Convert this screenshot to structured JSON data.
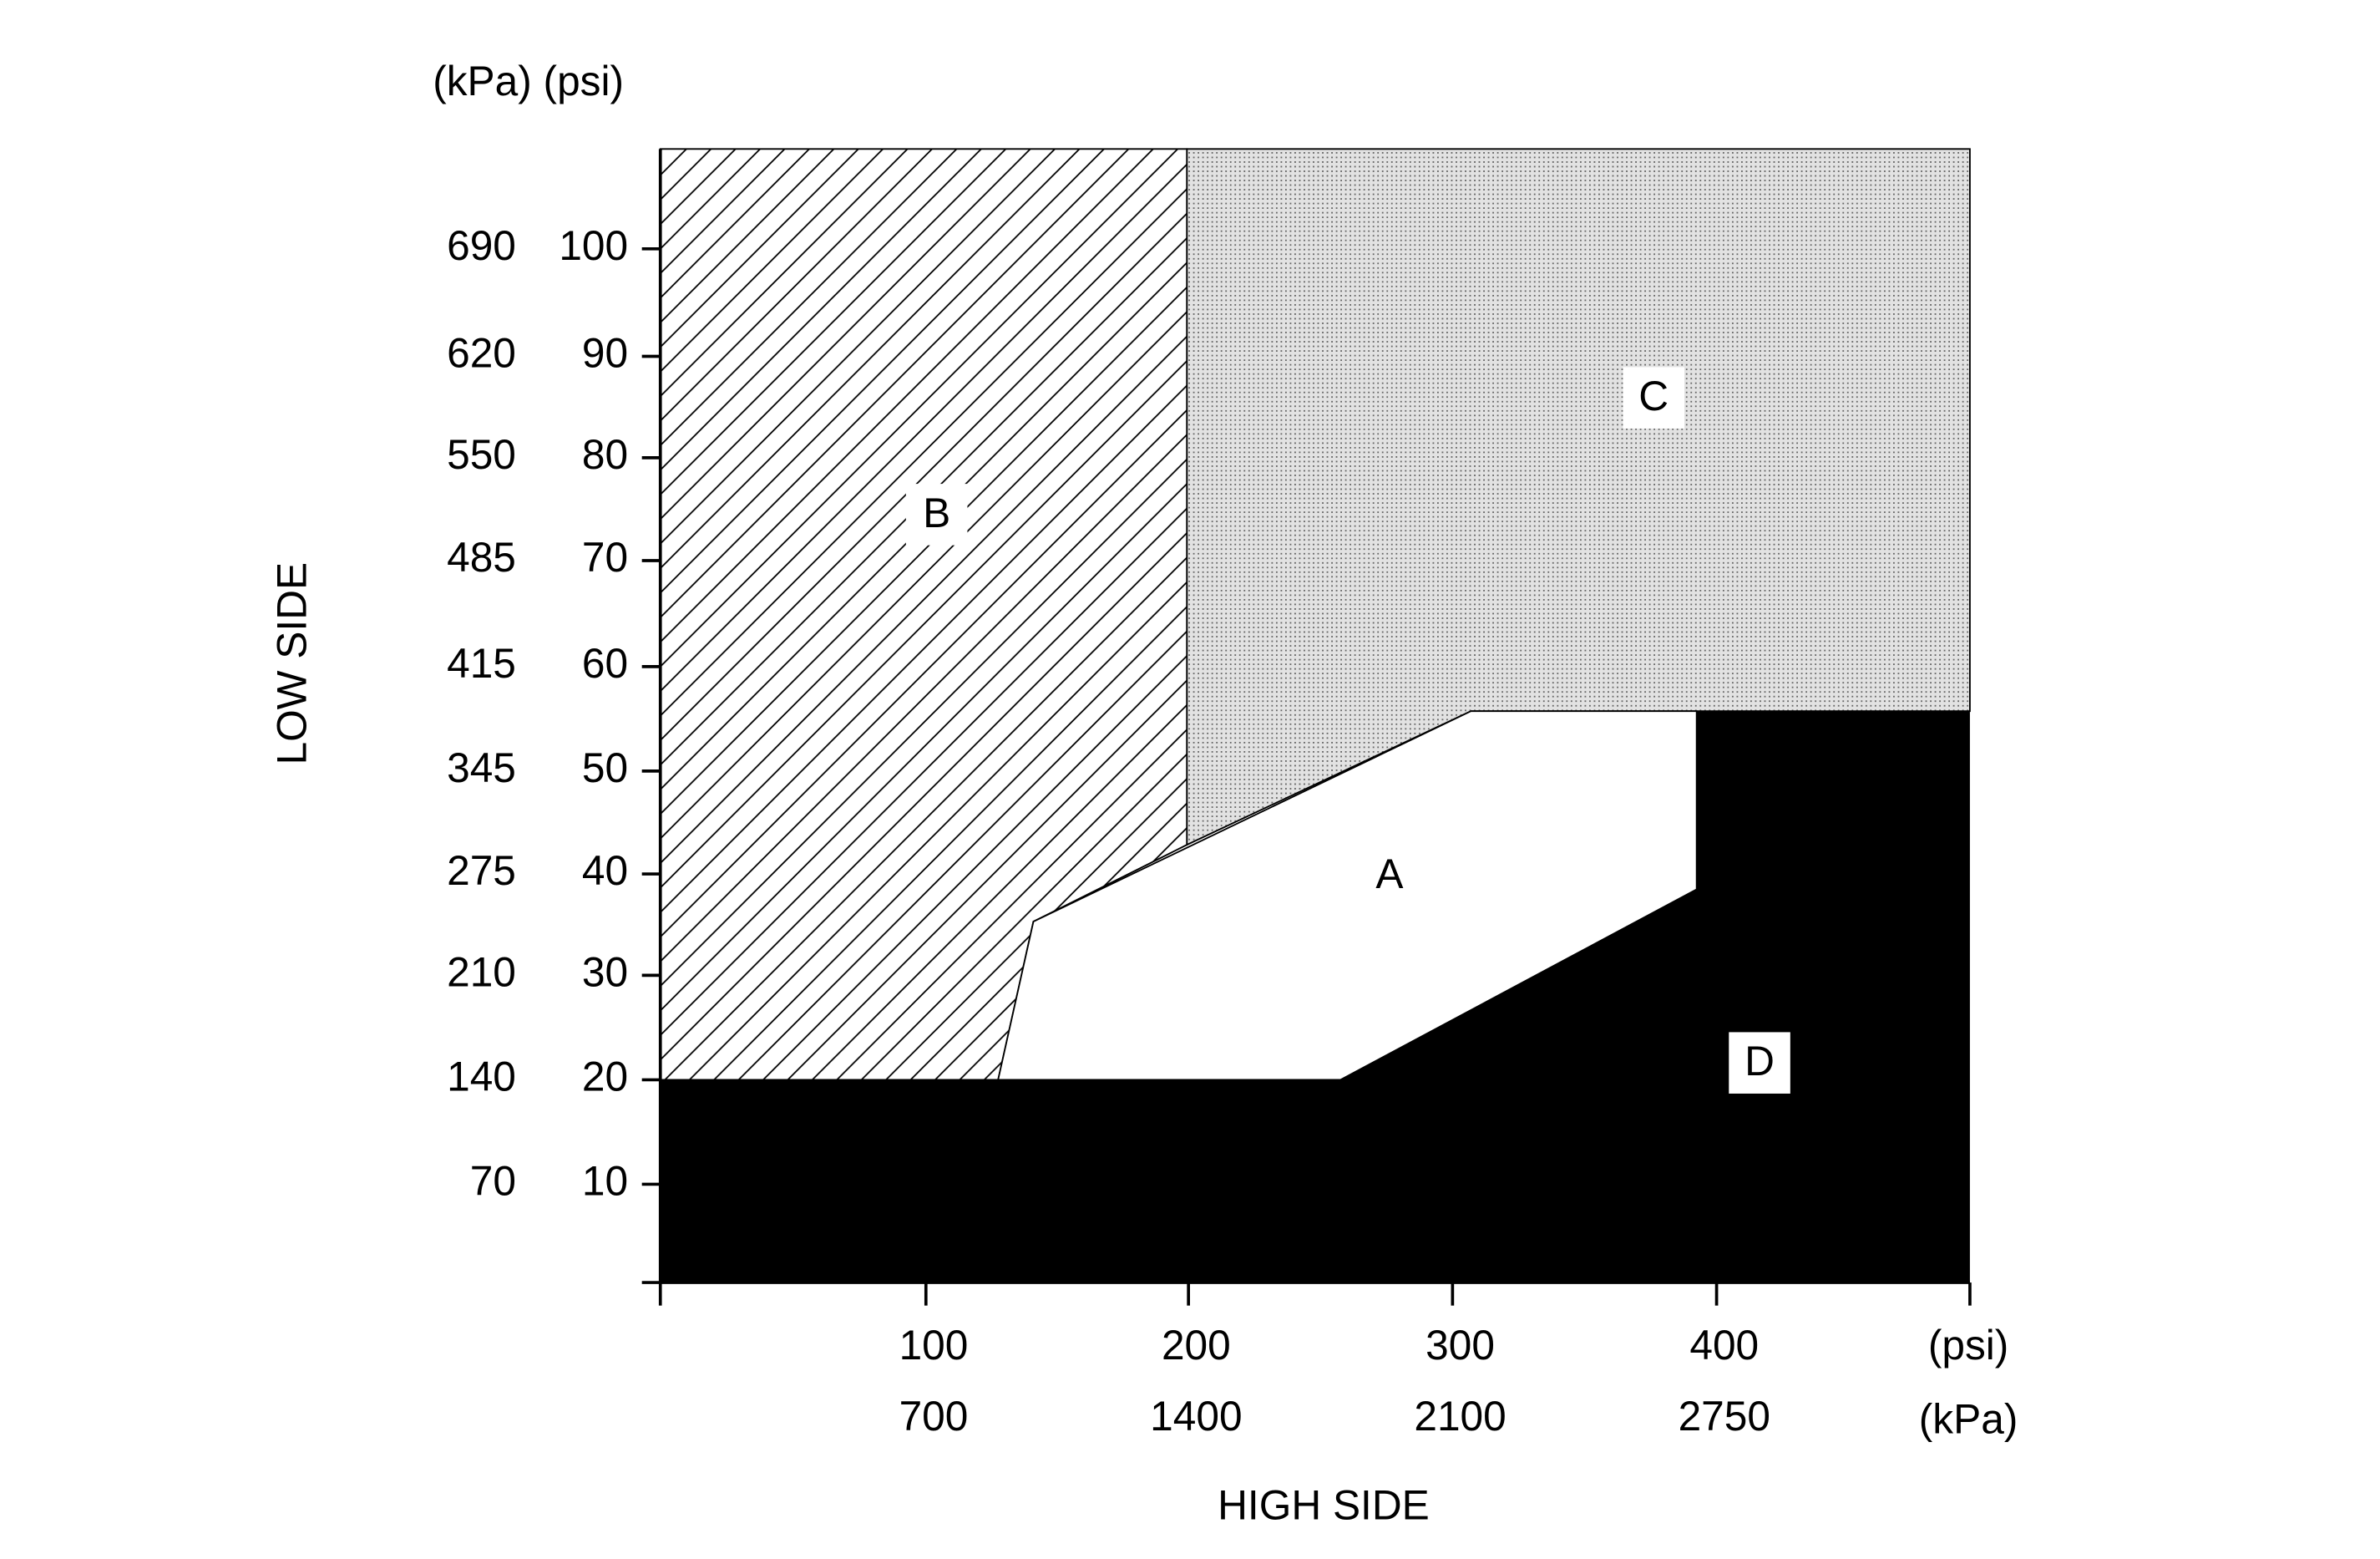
{
  "header": {
    "units": "(kPa) (psi)"
  },
  "y_axis": {
    "title": "LOW SIDE",
    "ticks": [
      {
        "kpa": "690",
        "psi": "100"
      },
      {
        "kpa": "620",
        "psi": "90"
      },
      {
        "kpa": "550",
        "psi": "80"
      },
      {
        "kpa": "485",
        "psi": "70"
      },
      {
        "kpa": "415",
        "psi": "60"
      },
      {
        "kpa": "345",
        "psi": "50"
      },
      {
        "kpa": "275",
        "psi": "40"
      },
      {
        "kpa": "210",
        "psi": "30"
      },
      {
        "kpa": "140",
        "psi": "20"
      },
      {
        "kpa": "70",
        "psi": "10"
      }
    ]
  },
  "x_axis": {
    "title": "HIGH SIDE",
    "ticks": [
      {
        "psi": "100",
        "kpa": "700"
      },
      {
        "psi": "200",
        "kpa": "1400"
      },
      {
        "psi": "300",
        "kpa": "2100"
      },
      {
        "psi": "400",
        "kpa": "2750"
      }
    ],
    "psi_unit": "(psi)",
    "kpa_unit": "(kPa)"
  },
  "regions": [
    "A",
    "B",
    "C",
    "D"
  ]
}
